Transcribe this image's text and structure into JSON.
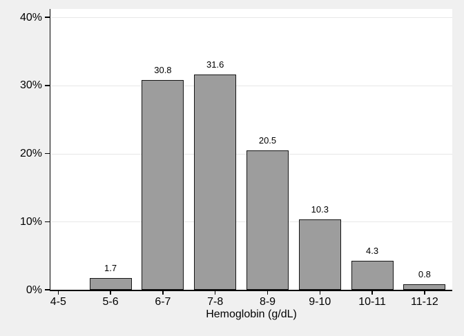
{
  "chart_data": {
    "type": "bar",
    "title": "",
    "xlabel": "Hemoglobin (g/dL)",
    "ylabel": "",
    "categories": [
      "4-5",
      "5-6",
      "6-7",
      "7-8",
      "8-9",
      "9-10",
      "10-11",
      "11-12"
    ],
    "values": [
      0,
      1.7,
      30.8,
      31.6,
      20.5,
      10.3,
      4.3,
      0.8
    ],
    "bar_value_labels": [
      "",
      "1.7",
      "30.8",
      "31.6",
      "20.5",
      "10.3",
      "4.3",
      "0.8"
    ],
    "ylim": [
      0,
      40
    ],
    "yticks": [
      0,
      10,
      20,
      30,
      40
    ],
    "ytick_labels": [
      "0%",
      "10%",
      "20%",
      "30%",
      "40%"
    ],
    "grid": true,
    "legend_position": "none",
    "colors": {
      "background": "#f0f0f0",
      "plot_background": "#ffffff",
      "bar_fill": "#9d9d9d",
      "bar_border": "#141414",
      "axis_line": "#000000",
      "gridline": "#e7e7e7",
      "text": "#000000"
    }
  }
}
